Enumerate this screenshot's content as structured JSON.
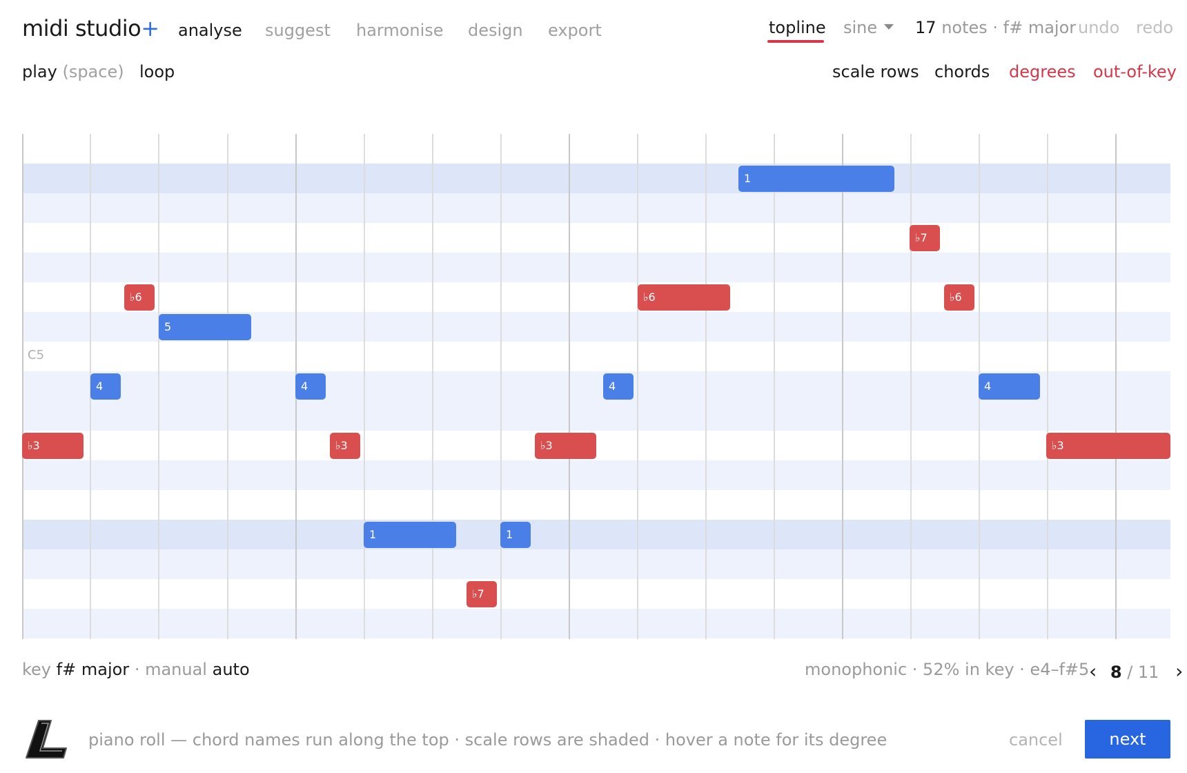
{
  "brand": {
    "name": "midi studio",
    "plus": "+"
  },
  "nav": [
    {
      "label": "analyse",
      "active": true
    },
    {
      "label": "suggest",
      "active": false
    },
    {
      "label": "harmonise",
      "active": false
    },
    {
      "label": "design",
      "active": false
    },
    {
      "label": "export",
      "active": false
    }
  ],
  "top_right": {
    "track": "topline",
    "instrument": "sine",
    "note_count": "17",
    "notes_label": "notes · f# major",
    "undo": "undo",
    "redo": "redo"
  },
  "transport": {
    "play": "play",
    "play_hint": "(space)",
    "loop": "loop"
  },
  "view_toggles": {
    "scale_rows": "scale rows",
    "chords": "chords",
    "degrees": "degrees",
    "out_of_key": "out-of-key"
  },
  "roll": {
    "row_label": "C5",
    "notes": [
      {
        "degree": "1",
        "in_key": true
      },
      {
        "degree": "♭7",
        "in_key": false
      },
      {
        "degree": "♭6",
        "in_key": false
      },
      {
        "degree": "♭6",
        "in_key": false
      },
      {
        "degree": "♭6",
        "in_key": false
      },
      {
        "degree": "5",
        "in_key": true
      },
      {
        "degree": "4",
        "in_key": true
      },
      {
        "degree": "4",
        "in_key": true
      },
      {
        "degree": "4",
        "in_key": true
      },
      {
        "degree": "4",
        "in_key": true
      },
      {
        "degree": "♭3",
        "in_key": false
      },
      {
        "degree": "♭3",
        "in_key": false
      },
      {
        "degree": "♭3",
        "in_key": false
      },
      {
        "degree": "♭3",
        "in_key": false
      },
      {
        "degree": "1",
        "in_key": true
      },
      {
        "degree": "1",
        "in_key": true
      },
      {
        "degree": "♭7",
        "in_key": false
      }
    ]
  },
  "key_info": {
    "key_label": "key",
    "key_root": "f#",
    "key_mode": "major",
    "sep": "·",
    "manual": "manual",
    "auto": "auto"
  },
  "stats": {
    "text": "monophonic · 52% in key · e4–f#5"
  },
  "pager": {
    "prev": "‹",
    "current": "8",
    "total": "/ 11",
    "next": "›"
  },
  "footer": {
    "hint": "piano roll — chord names run along the top · scale rows are shaded · hover a note for its degree",
    "cancel": "cancel",
    "next": "next"
  },
  "colors": {
    "accent": "#2766e0",
    "in_key_note": "#4b7fe8",
    "out_key_note": "#d94f50",
    "highlight_red": "#d8364a"
  }
}
